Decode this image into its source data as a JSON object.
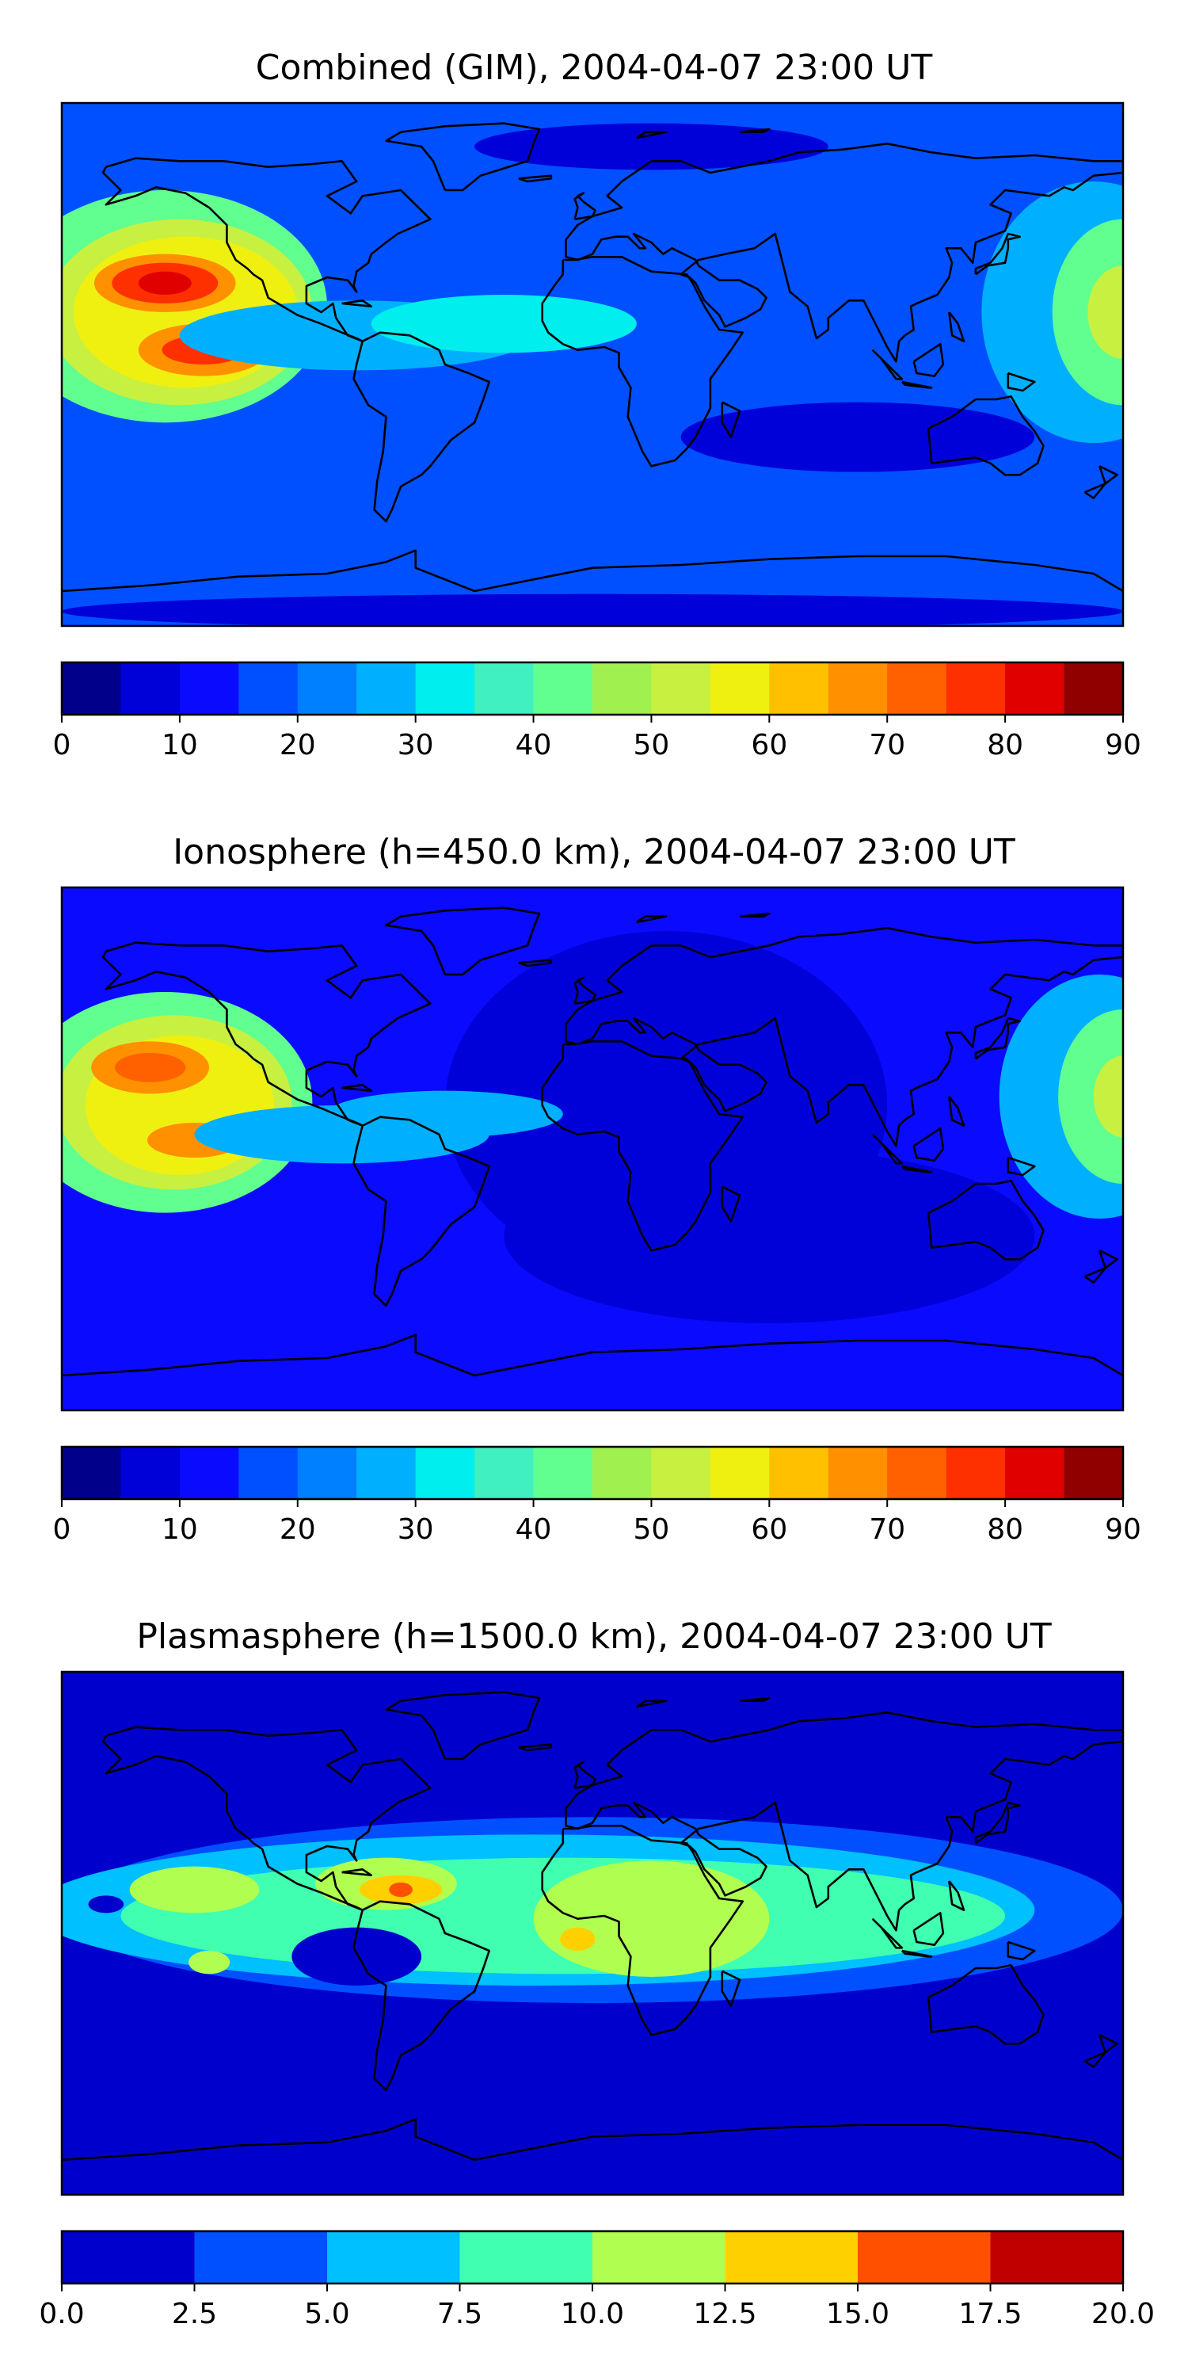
{
  "chart_data": [
    {
      "type": "heatmap",
      "panel": "combined",
      "title": "Combined (GIM), 2004-04-07 23:00 UT",
      "xlim": [
        -180,
        180
      ],
      "ylim": [
        -90,
        90
      ],
      "grid": false,
      "colorbar": {
        "ticks": [
          "0",
          "10",
          "20",
          "30",
          "40",
          "50",
          "60",
          "70",
          "80",
          "90"
        ],
        "boundaries": [
          0,
          5,
          10,
          15,
          20,
          25,
          30,
          35,
          40,
          45,
          50,
          55,
          60,
          65,
          70,
          75,
          80,
          85,
          90
        ],
        "colors": [
          "#00008b",
          "#0000d9",
          "#0a0aff",
          "#0050ff",
          "#0080ff",
          "#00b0ff",
          "#00eeee",
          "#40f0c0",
          "#60ff90",
          "#a0f050",
          "#c8f040",
          "#f0f010",
          "#ffc000",
          "#ff9000",
          "#ff6000",
          "#ff3000",
          "#e00000",
          "#900000"
        ]
      },
      "background_level": 15,
      "blobs": [
        {
          "lon": -145,
          "lat": 20,
          "rx": 55,
          "ry": 40,
          "level": 40
        },
        {
          "lon": -140,
          "lat": 18,
          "rx": 45,
          "ry": 32,
          "level": 50
        },
        {
          "lon": -138,
          "lat": 18,
          "rx": 38,
          "ry": 26,
          "level": 58
        },
        {
          "lon": -145,
          "lat": 28,
          "rx": 24,
          "ry": 10,
          "level": 68
        },
        {
          "lon": -145,
          "lat": 28,
          "rx": 18,
          "ry": 7,
          "level": 78
        },
        {
          "lon": -145,
          "lat": 28,
          "rx": 9,
          "ry": 4,
          "level": 84
        },
        {
          "lon": -132,
          "lat": 5,
          "rx": 22,
          "ry": 9,
          "level": 66
        },
        {
          "lon": -132,
          "lat": 5,
          "rx": 14,
          "ry": 5,
          "level": 76
        },
        {
          "lon": -80,
          "lat": 10,
          "rx": 60,
          "ry": 12,
          "level": 28
        },
        {
          "lon": -30,
          "lat": 14,
          "rx": 45,
          "ry": 10,
          "level": 32
        },
        {
          "lon": 170,
          "lat": 18,
          "rx": 38,
          "ry": 45,
          "level": 28
        },
        {
          "lon": 180,
          "lat": 18,
          "rx": 24,
          "ry": 32,
          "level": 42
        },
        {
          "lon": 180,
          "lat": 18,
          "rx": 12,
          "ry": 16,
          "level": 52
        },
        {
          "lon": 20,
          "lat": 75,
          "rx": 60,
          "ry": 8,
          "level": 6
        },
        {
          "lon": 90,
          "lat": -25,
          "rx": 60,
          "ry": 12,
          "level": 6
        },
        {
          "lon": 0,
          "lat": -85,
          "rx": 180,
          "ry": 6,
          "level": 8
        }
      ]
    },
    {
      "type": "heatmap",
      "panel": "ionosphere",
      "title": "Ionosphere  (h=450.0 km), 2004-04-07 23:00 UT",
      "xlim": [
        -180,
        180
      ],
      "ylim": [
        -90,
        90
      ],
      "grid": false,
      "colorbar": {
        "ticks": [
          "0",
          "10",
          "20",
          "30",
          "40",
          "50",
          "60",
          "70",
          "80",
          "90"
        ],
        "boundaries": [
          0,
          5,
          10,
          15,
          20,
          25,
          30,
          35,
          40,
          45,
          50,
          55,
          60,
          65,
          70,
          75,
          80,
          85,
          90
        ],
        "colors": [
          "#00008b",
          "#0000d9",
          "#0a0aff",
          "#0050ff",
          "#0080ff",
          "#00b0ff",
          "#00eeee",
          "#40f0c0",
          "#60ff90",
          "#a0f050",
          "#c8f040",
          "#f0f010",
          "#ffc000",
          "#ff9000",
          "#ff6000",
          "#ff3000",
          "#e00000",
          "#900000"
        ]
      },
      "background_level": 12,
      "blobs": [
        {
          "lon": 25,
          "lat": 15,
          "rx": 75,
          "ry": 60,
          "level": 7
        },
        {
          "lon": 60,
          "lat": -30,
          "rx": 90,
          "ry": 30,
          "level": 7
        },
        {
          "lon": -145,
          "lat": 16,
          "rx": 50,
          "ry": 38,
          "level": 40
        },
        {
          "lon": -142,
          "lat": 16,
          "rx": 40,
          "ry": 30,
          "level": 50
        },
        {
          "lon": -140,
          "lat": 15,
          "rx": 32,
          "ry": 24,
          "level": 57
        },
        {
          "lon": -150,
          "lat": 28,
          "rx": 20,
          "ry": 9,
          "level": 66
        },
        {
          "lon": -150,
          "lat": 28,
          "rx": 12,
          "ry": 5,
          "level": 74
        },
        {
          "lon": -135,
          "lat": 3,
          "rx": 16,
          "ry": 6,
          "level": 66
        },
        {
          "lon": -85,
          "lat": 5,
          "rx": 50,
          "ry": 10,
          "level": 26
        },
        {
          "lon": -50,
          "lat": 12,
          "rx": 40,
          "ry": 8,
          "level": 28
        },
        {
          "lon": 172,
          "lat": 18,
          "rx": 34,
          "ry": 42,
          "level": 28
        },
        {
          "lon": 180,
          "lat": 18,
          "rx": 22,
          "ry": 30,
          "level": 40
        },
        {
          "lon": 180,
          "lat": 18,
          "rx": 10,
          "ry": 14,
          "level": 50
        }
      ]
    },
    {
      "type": "heatmap",
      "panel": "plasmasphere",
      "title": "Plasmasphere (h=1500.0 km), 2004-04-07 23:00 UT",
      "xlim": [
        -180,
        180
      ],
      "ylim": [
        -90,
        90
      ],
      "grid": false,
      "colorbar": {
        "ticks": [
          "0.0",
          "2.5",
          "5.0",
          "7.5",
          "10.0",
          "12.5",
          "15.0",
          "17.5",
          "20.0"
        ],
        "boundaries": [
          0,
          2.5,
          5,
          7.5,
          10,
          12.5,
          15,
          17.5,
          20
        ],
        "colors": [
          "#0000cd",
          "#0050ff",
          "#00c0ff",
          "#40ffb0",
          "#b0ff50",
          "#ffd000",
          "#ff5000",
          "#c00000"
        ]
      },
      "background_level": 1.5,
      "blobs": [
        {
          "lon": 0,
          "lat": 8,
          "rx": 180,
          "ry": 32,
          "level": 4
        },
        {
          "lon": -20,
          "lat": 8,
          "rx": 170,
          "ry": 26,
          "level": 6
        },
        {
          "lon": -10,
          "lat": 6,
          "rx": 150,
          "ry": 20,
          "level": 8.5
        },
        {
          "lon": -135,
          "lat": 15,
          "rx": 22,
          "ry": 8,
          "level": 11
        },
        {
          "lon": -70,
          "lat": 17,
          "rx": 24,
          "ry": 9,
          "level": 11
        },
        {
          "lon": -65,
          "lat": 15,
          "rx": 14,
          "ry": 5,
          "level": 14
        },
        {
          "lon": -65,
          "lat": 15,
          "rx": 4,
          "ry": 2.5,
          "level": 16
        },
        {
          "lon": 20,
          "lat": 5,
          "rx": 40,
          "ry": 20,
          "level": 11
        },
        {
          "lon": -5,
          "lat": -2,
          "rx": 6,
          "ry": 4,
          "level": 14
        },
        {
          "lon": -130,
          "lat": -10,
          "rx": 7,
          "ry": 4,
          "level": 11
        },
        {
          "lon": -80,
          "lat": -8,
          "rx": 22,
          "ry": 10,
          "level": 1
        },
        {
          "lon": 100,
          "lat": 60,
          "rx": 70,
          "ry": 20,
          "level": 1
        },
        {
          "lon": -120,
          "lat": 60,
          "rx": 55,
          "ry": 20,
          "level": 1
        },
        {
          "lon": 130,
          "lat": -55,
          "rx": 60,
          "ry": 10,
          "level": 1
        },
        {
          "lon": -130,
          "lat": -40,
          "rx": 40,
          "ry": 7,
          "level": 1
        },
        {
          "lon": -165,
          "lat": 10,
          "rx": 6,
          "ry": 3,
          "level": 1
        }
      ]
    }
  ]
}
